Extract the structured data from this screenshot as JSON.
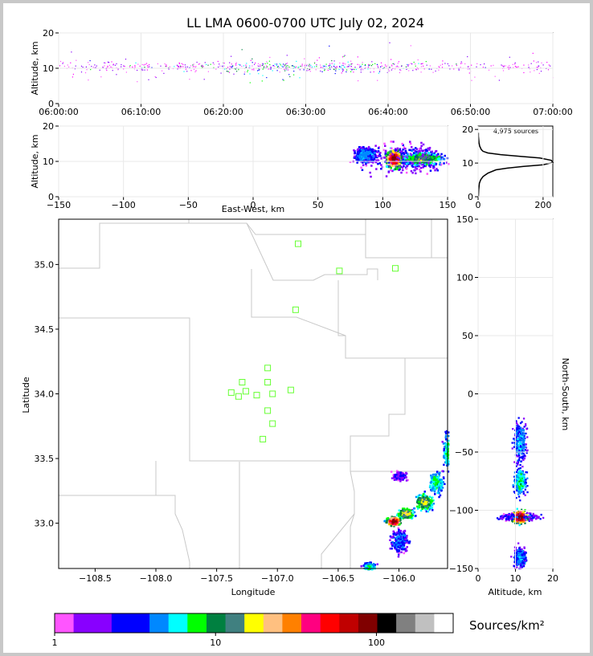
{
  "figure": {
    "title": "LL LMA 0600-0700 UTC July 02, 2024",
    "colorbar_label": "Sources/km²",
    "colorbar_ticks": [
      "1",
      "10",
      "100"
    ],
    "colorbar_colors": [
      "#ff55ff",
      "#8800ff",
      "#8800ff",
      "#0000ff",
      "#0000ff",
      "#0088ff",
      "#00ffff",
      "#00ff00",
      "#008040",
      "#408080",
      "#ffff00",
      "#ffc080",
      "#ff8000",
      "#ff0080",
      "#ff0000",
      "#c00000",
      "#800000",
      "#000000",
      "#808080",
      "#c0c0c0",
      "#ffffff"
    ]
  },
  "chart_data": [
    {
      "panel": "altitude-vs-time",
      "type": "scatter",
      "ylabel": "Altitude, km",
      "ylim": [
        0,
        20
      ],
      "yticks": [
        "0",
        "10",
        "20"
      ],
      "xticks": [
        "06:00:00",
        "06:10:00",
        "06:20:00",
        "06:30:00",
        "06:40:00",
        "06:50:00",
        "07:00:00"
      ],
      "xlim_minutes": [
        0,
        60
      ],
      "grid": true
    },
    {
      "panel": "altitude-vs-eastwest",
      "type": "heatmap",
      "xlabel": "East-West, km",
      "ylabel": "Altitude, km",
      "xlim": [
        -150,
        150
      ],
      "ylim": [
        0,
        20
      ],
      "xticks": [
        "−150",
        "−100",
        "−50",
        "0",
        "50",
        "100",
        "150"
      ],
      "yticks": [
        "0",
        "10",
        "20"
      ],
      "peak": {
        "x": 108,
        "y": 11
      },
      "grid": true
    },
    {
      "panel": "altitude-histogram",
      "type": "line",
      "annotation": "4,975 sources",
      "xlim": [
        0,
        230
      ],
      "ylim": [
        0,
        21
      ],
      "xticks": [
        "0",
        "200"
      ],
      "yticks": [
        "0",
        "10",
        "20"
      ],
      "profile": [
        [
          1,
          0
        ],
        [
          2,
          2
        ],
        [
          4,
          4
        ],
        [
          8,
          5
        ],
        [
          15,
          6
        ],
        [
          30,
          7
        ],
        [
          55,
          8
        ],
        [
          90,
          8.5
        ],
        [
          140,
          9
        ],
        [
          200,
          9.5
        ],
        [
          230,
          10.2
        ],
        [
          225,
          10.8
        ],
        [
          190,
          11.5
        ],
        [
          130,
          12
        ],
        [
          70,
          12.5
        ],
        [
          30,
          13
        ],
        [
          15,
          13.5
        ],
        [
          10,
          14
        ],
        [
          5,
          15
        ],
        [
          3,
          16
        ],
        [
          2,
          17
        ],
        [
          1,
          18
        ],
        [
          1,
          19
        ]
      ],
      "grid": true
    },
    {
      "panel": "plan-view-map",
      "type": "scatter",
      "xlabel": "Longitude",
      "ylabel": "Latitude",
      "xlim": [
        -108.8,
        -105.6
      ],
      "ylim": [
        32.65,
        35.35
      ],
      "xticks": [
        "−108.5",
        "−108.0",
        "−107.5",
        "−107.0",
        "−106.5",
        "−106.0"
      ],
      "yticks": [
        "33.0",
        "33.5",
        "34.0",
        "34.5",
        "35.0"
      ],
      "stations": [
        {
          "lon": -106.83,
          "lat": 35.16
        },
        {
          "lon": -106.49,
          "lat": 34.95
        },
        {
          "lon": -106.03,
          "lat": 34.97
        },
        {
          "lon": -106.85,
          "lat": 34.65
        },
        {
          "lon": -107.08,
          "lat": 34.2
        },
        {
          "lon": -107.29,
          "lat": 34.09
        },
        {
          "lon": -107.08,
          "lat": 34.09
        },
        {
          "lon": -107.38,
          "lat": 34.01
        },
        {
          "lon": -107.26,
          "lat": 34.02
        },
        {
          "lon": -107.17,
          "lat": 33.99
        },
        {
          "lon": -107.04,
          "lat": 34.0
        },
        {
          "lon": -106.89,
          "lat": 34.03
        },
        {
          "lon": -107.32,
          "lat": 33.98
        },
        {
          "lon": -107.08,
          "lat": 33.87
        },
        {
          "lon": -107.04,
          "lat": 33.77
        },
        {
          "lon": -107.12,
          "lat": 33.65
        }
      ],
      "peak": {
        "lon": -106.05,
        "lat": 33.02
      },
      "grid": true
    },
    {
      "panel": "northsouth-vs-altitude",
      "type": "heatmap",
      "xlabel": "Altitude, km",
      "ylabel": "North-South, km",
      "xlim": [
        0,
        20
      ],
      "ylim": [
        -150,
        150
      ],
      "xticks": [
        "0",
        "10",
        "20"
      ],
      "yticks": [
        "−150",
        "−100",
        "−50",
        "0",
        "50",
        "100",
        "150"
      ],
      "peak": {
        "x": 11,
        "y": -105
      },
      "grid": true
    }
  ]
}
